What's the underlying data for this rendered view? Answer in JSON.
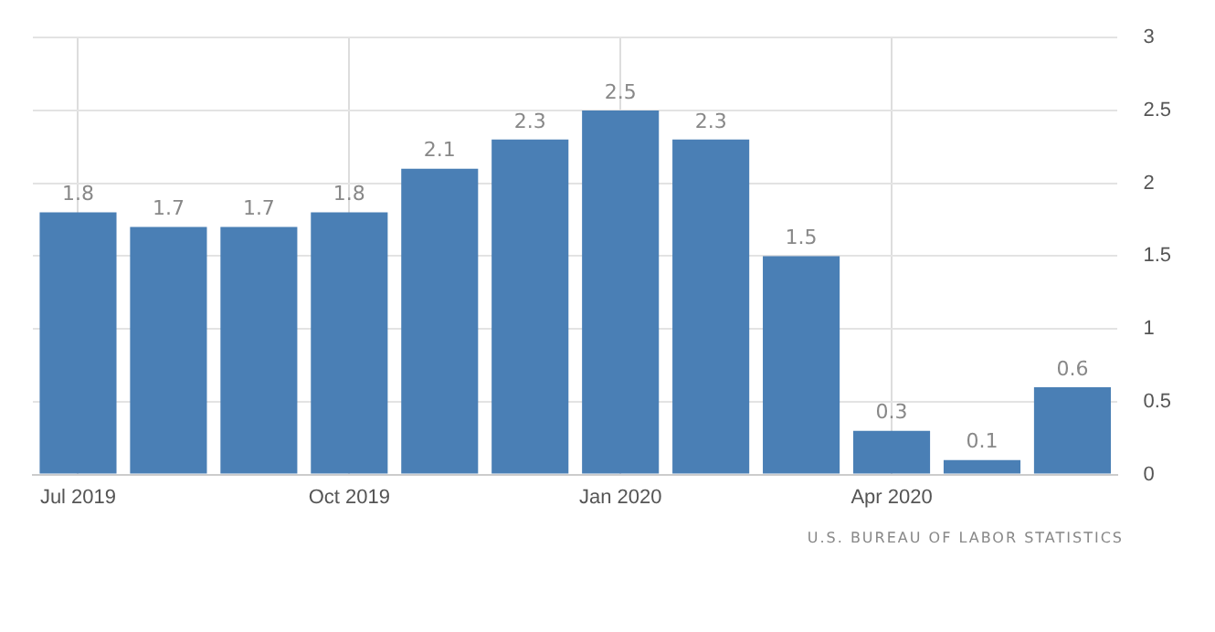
{
  "chart_data": {
    "type": "bar",
    "categories": [
      "Jul 2019",
      null,
      null,
      "Oct 2019",
      null,
      null,
      "Jan 2020",
      null,
      null,
      "Apr 2020",
      null,
      null
    ],
    "values": [
      1.8,
      1.7,
      1.7,
      1.8,
      2.1,
      2.3,
      2.5,
      2.3,
      1.5,
      0.3,
      0.1,
      0.6
    ],
    "color": "#4a7fb5",
    "ylim": [
      0,
      3
    ],
    "yticks": [
      0,
      0.5,
      1,
      1.5,
      2,
      2.5,
      3
    ],
    "grid": true,
    "data_labels": true,
    "annotations": [
      "U.S. BUREAU OF LABOR STATISTICS"
    ]
  }
}
